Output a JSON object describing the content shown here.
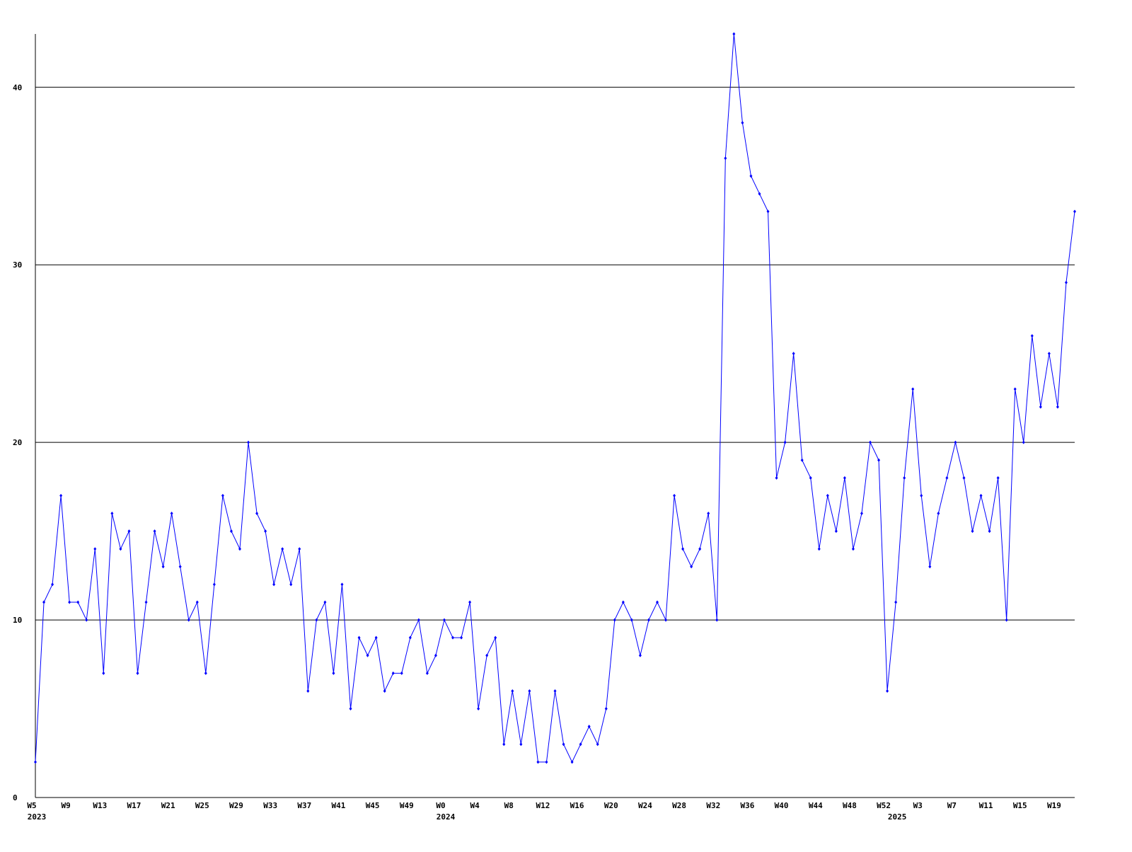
{
  "chart_data": {
    "type": "line",
    "categories": [
      "W5",
      null,
      null,
      null,
      "W9",
      null,
      null,
      null,
      "W13",
      null,
      null,
      null,
      "W17",
      null,
      null,
      null,
      "W21",
      null,
      null,
      null,
      "W25",
      null,
      null,
      null,
      "W29",
      null,
      null,
      null,
      "W33",
      null,
      null,
      null,
      "W37",
      null,
      null,
      null,
      "W41",
      null,
      null,
      null,
      "W45",
      null,
      null,
      null,
      "W49",
      null,
      null,
      null,
      "W0",
      null,
      null,
      null,
      "W4",
      null,
      null,
      null,
      "W8",
      null,
      null,
      null,
      "W12",
      null,
      null,
      null,
      "W16",
      null,
      null,
      null,
      "W20",
      null,
      null,
      null,
      "W24",
      null,
      null,
      null,
      "W28",
      null,
      null,
      null,
      "W32",
      null,
      null,
      null,
      "W36",
      null,
      null,
      null,
      "W40",
      null,
      null,
      null,
      "W44",
      null,
      null,
      null,
      "W48",
      null,
      null,
      null,
      "W52",
      null,
      null,
      null,
      "W3",
      null,
      null,
      null,
      "W7",
      null,
      null,
      null,
      "W11",
      null,
      null,
      null,
      "W15",
      null,
      null,
      null,
      "W19",
      null,
      null
    ],
    "years": [
      "2023",
      null,
      null,
      null,
      null,
      null,
      null,
      null,
      null,
      null,
      null,
      null,
      null,
      null,
      null,
      null,
      null,
      null,
      null,
      null,
      null,
      null,
      null,
      null,
      null,
      null,
      null,
      null,
      null,
      null,
      null,
      null,
      null,
      null,
      null,
      null,
      null,
      null,
      null,
      null,
      null,
      null,
      null,
      null,
      null,
      null,
      null,
      null,
      "2024",
      null,
      null,
      null,
      null,
      null,
      null,
      null,
      null,
      null,
      null,
      null,
      null,
      null,
      null,
      null,
      null,
      null,
      null,
      null,
      null,
      null,
      null,
      null,
      null,
      null,
      null,
      null,
      null,
      null,
      null,
      null,
      null,
      null,
      null,
      null,
      null,
      null,
      null,
      null,
      null,
      null,
      null,
      null,
      null,
      null,
      null,
      null,
      null,
      null,
      null,
      null,
      null,
      "2025",
      null,
      null,
      null,
      null,
      null,
      null,
      null,
      null,
      null,
      null,
      null,
      null,
      null,
      null,
      null,
      null,
      null,
      null,
      null,
      null,
      null
    ],
    "series": [
      {
        "color": "#0000ff",
        "values": [
          2,
          11,
          12,
          17,
          11,
          11,
          10,
          14,
          7,
          16,
          14,
          15,
          7,
          11,
          15,
          13,
          16,
          13,
          10,
          11,
          7,
          12,
          17,
          15,
          14,
          20,
          16,
          15,
          12,
          14,
          12,
          14,
          6,
          10,
          11,
          7,
          12,
          5,
          9,
          8,
          9,
          6,
          7,
          7,
          9,
          10,
          7,
          8,
          10,
          9,
          9,
          11,
          5,
          8,
          9,
          3,
          6,
          3,
          6,
          2,
          2,
          6,
          3,
          2,
          3,
          4,
          3,
          5,
          10,
          11,
          10,
          8,
          10,
          11,
          10,
          17,
          14,
          13,
          14,
          16,
          10,
          36,
          43,
          38,
          35,
          34,
          33,
          18,
          20,
          25,
          19,
          18,
          14,
          17,
          15,
          18,
          14,
          16,
          20,
          19,
          6,
          11,
          18,
          23,
          17,
          13,
          16,
          18,
          20,
          18,
          15,
          17,
          15,
          18,
          10,
          23,
          20,
          26,
          22,
          25,
          22,
          29,
          33
        ]
      }
    ],
    "ylim": [
      0,
      43
    ],
    "yticks": [
      0,
      10,
      20,
      30,
      40
    ],
    "grid": true
  }
}
